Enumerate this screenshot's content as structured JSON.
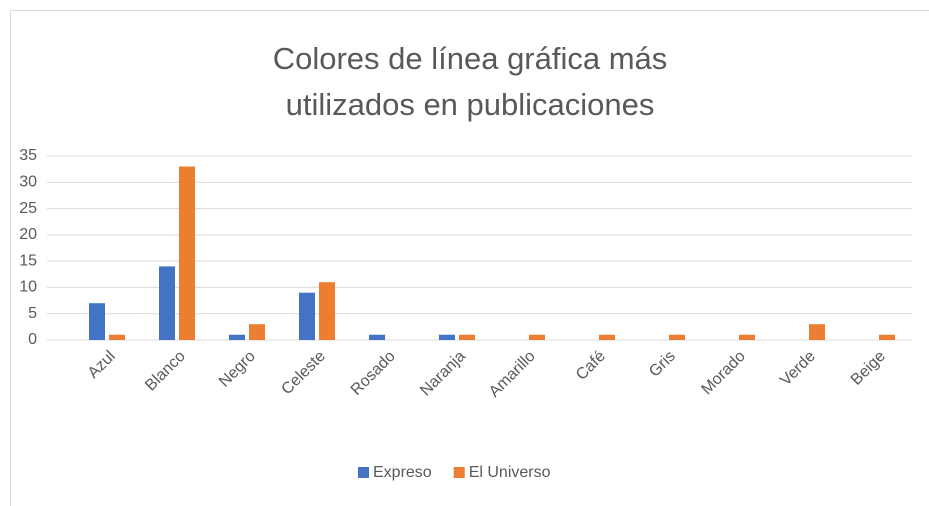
{
  "chart_data": {
    "type": "bar",
    "title": "Colores de línea gráfica más utilizados en publicaciones",
    "categories": [
      "Azul",
      "Blanco",
      "Negro",
      "Celeste",
      "Rosado",
      "Naranja",
      "Amarillo",
      "Café",
      "Gris",
      "Morado",
      "Verde",
      "Beige"
    ],
    "series": [
      {
        "name": "Expreso",
        "color": "#4472c4",
        "values": [
          7,
          14,
          1,
          9,
          1,
          1,
          0,
          0,
          0,
          0,
          0,
          0
        ]
      },
      {
        "name": "El Universo",
        "color": "#ed7d31",
        "values": [
          1,
          33,
          3,
          11,
          0,
          1,
          1,
          1,
          1,
          1,
          3,
          1
        ]
      }
    ],
    "ylim": [
      0,
      35
    ],
    "yticks": [
      0,
      5,
      10,
      15,
      20,
      25,
      30,
      35
    ],
    "grid": true,
    "legend": "bottom"
  }
}
